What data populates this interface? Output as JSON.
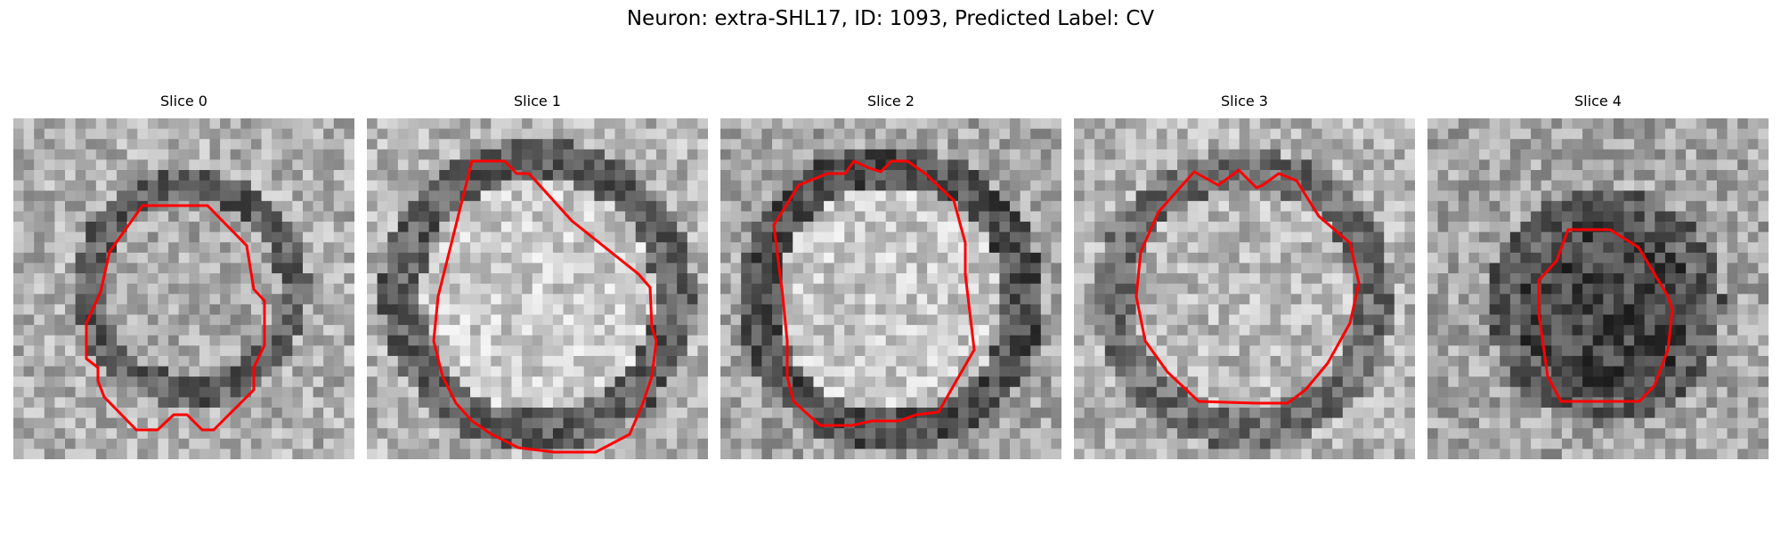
{
  "figure": {
    "title": "Neuron: extra-SHL17, ID: 1093, Predicted Label: CV"
  },
  "panels": [
    {
      "title": "Slice 0"
    },
    {
      "title": "Slice 1"
    },
    {
      "title": "Slice 2"
    },
    {
      "title": "Slice 3"
    },
    {
      "title": "Slice 4"
    }
  ],
  "colors": {
    "contour": "#ff0000",
    "background": "#ffffff"
  }
}
